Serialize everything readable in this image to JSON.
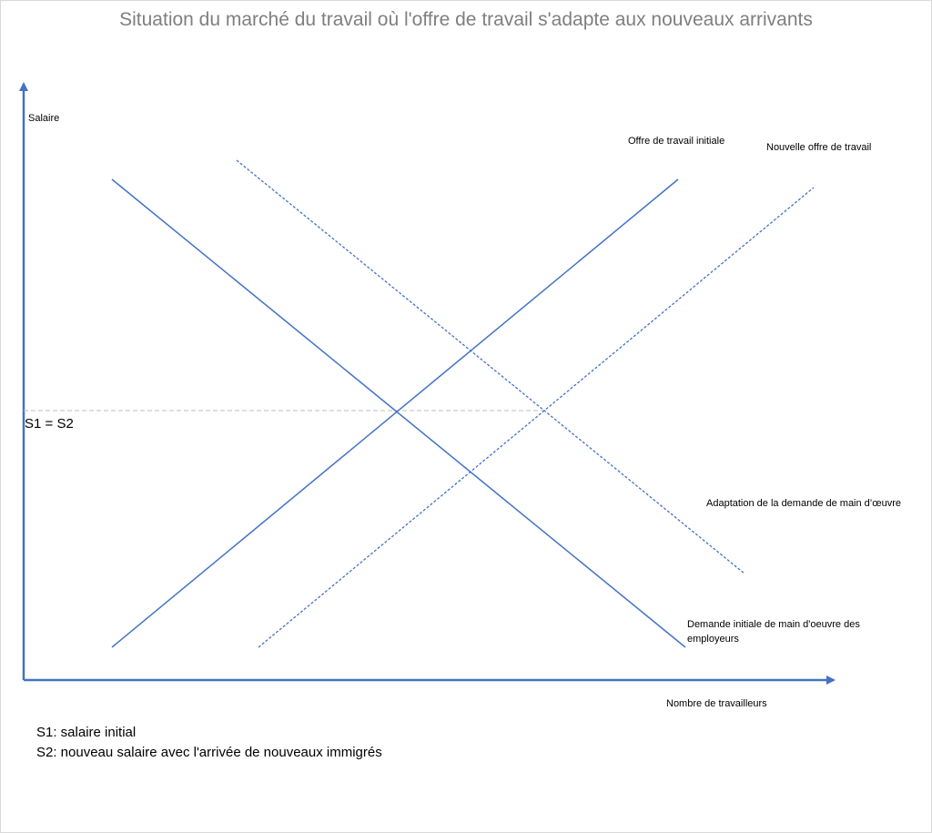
{
  "title": "Situation du marché du travail où l'offre de travail s'adapte aux nouveaux arrivants",
  "axes": {
    "y_label": "Salaire",
    "x_label": "Nombre de travailleurs"
  },
  "curves": {
    "supply_initial": "Offre de travail initiale",
    "supply_new": "Nouvelle offre de travail",
    "demand_adapted": "Adaptation de la demande de main d’œuvre",
    "demand_initial_line1": "Demande initiale de main d'oeuvre des",
    "demand_initial_line2": "employeurs"
  },
  "wage_marker": "S1 = S2",
  "legend": [
    "S1: salaire initial",
    "S2: nouveau salaire avec l'arrivée de nouveaux immigrés"
  ],
  "colors": {
    "line": "#4472c4",
    "guide": "#bfbfbf",
    "title": "#7f7f7f"
  }
}
